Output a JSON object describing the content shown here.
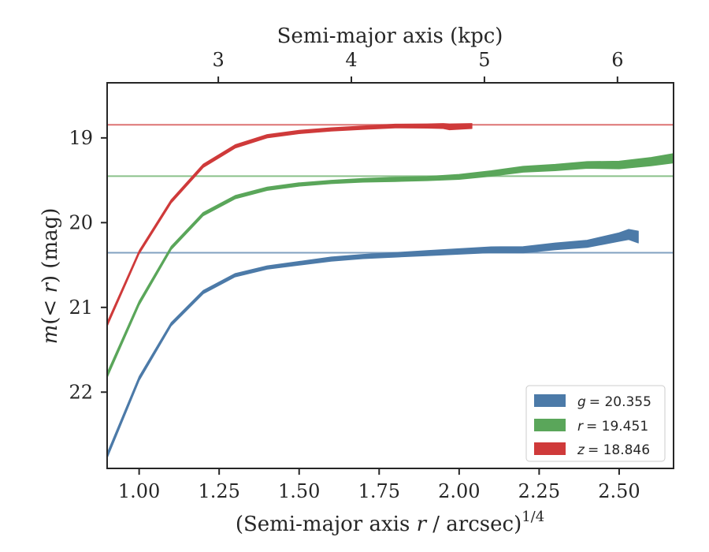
{
  "chart_data": {
    "type": "area",
    "xlabel": "(Semi-major axis r / arcsec)1/4",
    "xlabel_parts": {
      "prefix": "(Semi-major axis ",
      "var": "r",
      "suffix": " / arcsec)",
      "sup": "1/4"
    },
    "x2label": "Semi-major axis (kpc)",
    "ylabel": "m(< r) (mag)",
    "ylabel_parts": {
      "var": "m",
      "paren": "(< ",
      "var2": "r",
      "close": ")",
      "unit": " (mag)"
    },
    "xlim": [
      0.9,
      2.67
    ],
    "ylim": [
      22.9,
      18.35
    ],
    "y_inverted": true,
    "x_ticks": [
      "1.00",
      "1.25",
      "1.50",
      "1.75",
      "2.00",
      "2.25",
      "2.50"
    ],
    "x_tick_values": [
      1.0,
      1.25,
      1.5,
      1.75,
      2.0,
      2.25,
      2.5
    ],
    "y_ticks": [
      "19",
      "20",
      "21",
      "22"
    ],
    "y_tick_values": [
      19,
      20,
      21,
      22
    ],
    "x2_ticks": [
      "3",
      "4",
      "5",
      "6"
    ],
    "x2_tick_values": [
      3,
      4,
      5,
      6
    ],
    "x2_to_x_scale": 0.4158,
    "legend_position": "lower-right",
    "series": [
      {
        "name": "g = 20.355",
        "legend_var": "g",
        "legend_value": "= 20.355",
        "color": "#4c7aa8",
        "asymptote": 20.355,
        "x": [
          0.9,
          1.0,
          1.1,
          1.2,
          1.3,
          1.4,
          1.5,
          1.6,
          1.7,
          1.8,
          1.9,
          2.0,
          2.1,
          2.2,
          2.3,
          2.4,
          2.5,
          2.53,
          2.56
        ],
        "y": [
          22.75,
          21.84,
          21.2,
          20.82,
          20.62,
          20.53,
          20.48,
          20.43,
          20.4,
          20.38,
          20.36,
          20.34,
          20.32,
          20.32,
          20.28,
          20.25,
          20.17,
          20.14,
          20.17
        ],
        "width": [
          0.06,
          0.05,
          0.04,
          0.035,
          0.035,
          0.04,
          0.045,
          0.05,
          0.05,
          0.055,
          0.06,
          0.065,
          0.07,
          0.075,
          0.08,
          0.085,
          0.1,
          0.12,
          0.14
        ]
      },
      {
        "name": "r = 19.451",
        "legend_var": "r",
        "legend_value": "= 19.451",
        "color": "#5aa65a",
        "asymptote": 19.451,
        "x": [
          0.9,
          1.0,
          1.1,
          1.2,
          1.3,
          1.4,
          1.5,
          1.6,
          1.7,
          1.8,
          1.9,
          2.0,
          2.1,
          2.2,
          2.3,
          2.4,
          2.5,
          2.6,
          2.67
        ],
        "y": [
          21.8,
          20.95,
          20.3,
          19.9,
          19.7,
          19.6,
          19.55,
          19.52,
          19.5,
          19.49,
          19.48,
          19.46,
          19.42,
          19.37,
          19.35,
          19.32,
          19.32,
          19.28,
          19.24
        ],
        "width": [
          0.06,
          0.05,
          0.04,
          0.035,
          0.035,
          0.035,
          0.04,
          0.04,
          0.045,
          0.05,
          0.05,
          0.06,
          0.065,
          0.07,
          0.075,
          0.08,
          0.09,
          0.1,
          0.11
        ]
      },
      {
        "name": "z = 18.846",
        "legend_var": "z",
        "legend_value": "= 18.846",
        "color": "#cf3a3a",
        "asymptote": 18.846,
        "x": [
          0.9,
          1.0,
          1.1,
          1.2,
          1.3,
          1.4,
          1.5,
          1.6,
          1.7,
          1.8,
          1.9,
          1.95,
          1.97,
          2.04
        ],
        "y": [
          21.2,
          20.35,
          19.75,
          19.33,
          19.1,
          18.98,
          18.93,
          18.9,
          18.88,
          18.86,
          18.86,
          18.86,
          18.87,
          18.86
        ],
        "width": [
          0.05,
          0.04,
          0.035,
          0.03,
          0.03,
          0.03,
          0.03,
          0.035,
          0.04,
          0.045,
          0.05,
          0.06,
          0.07,
          0.06
        ]
      }
    ]
  }
}
